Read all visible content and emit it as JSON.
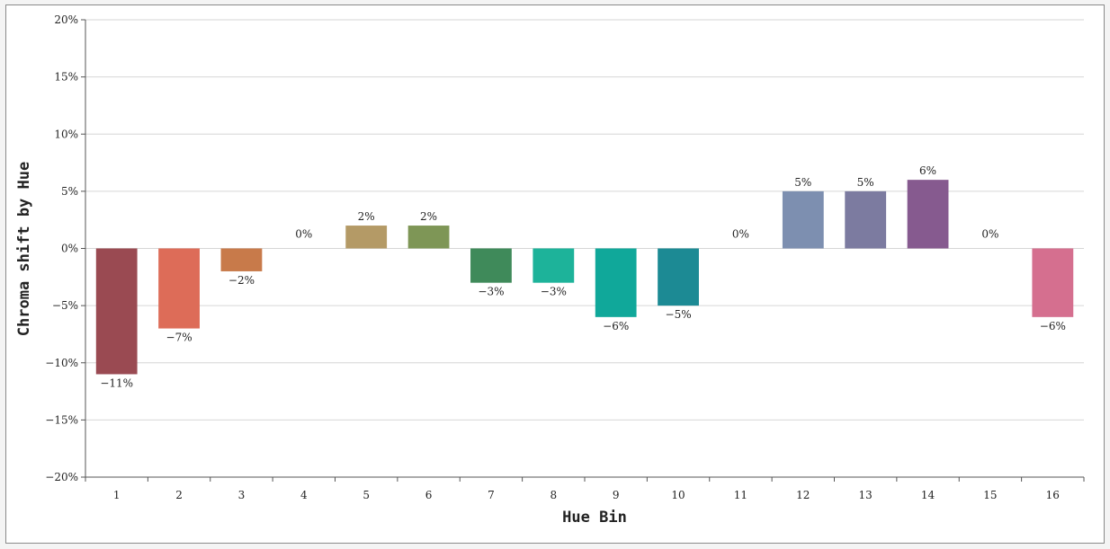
{
  "chart_data": {
    "type": "bar",
    "title": "",
    "xlabel": "Hue Bin",
    "ylabel": "Chroma shift by Hue",
    "categories": [
      "1",
      "2",
      "3",
      "4",
      "5",
      "6",
      "7",
      "8",
      "9",
      "10",
      "11",
      "12",
      "13",
      "14",
      "15",
      "16"
    ],
    "values": [
      -11,
      -7,
      -2,
      0,
      2,
      2,
      -3,
      -3,
      -6,
      -5,
      0,
      5,
      5,
      6,
      0,
      -6
    ],
    "data_labels": [
      "−11%",
      "−7%",
      "−2%",
      "0%",
      "2%",
      "2%",
      "−3%",
      "−3%",
      "−6%",
      "−5%",
      "0%",
      "5%",
      "5%",
      "6%",
      "0%",
      "−6%"
    ],
    "bar_colors": [
      "#9a4a52",
      "#dd6c58",
      "#c87a4a",
      "#c9a06a",
      "#b49a66",
      "#7e9656",
      "#3f8a5a",
      "#1db39a",
      "#10a89a",
      "#1c8a94",
      "#7d92ba",
      "#7d8fb0",
      "#7c7ba0",
      "#865a8f",
      "#c06c96",
      "#d56f8f"
    ],
    "ylim": [
      -20,
      20
    ],
    "yticks": [
      -20,
      -15,
      -10,
      -5,
      0,
      5,
      10,
      15,
      20
    ],
    "ytick_labels": [
      "−20%",
      "−15%",
      "−10%",
      "−5%",
      "0%",
      "5%",
      "10%",
      "15%",
      "20%"
    ],
    "grid": true,
    "legend": "none"
  }
}
